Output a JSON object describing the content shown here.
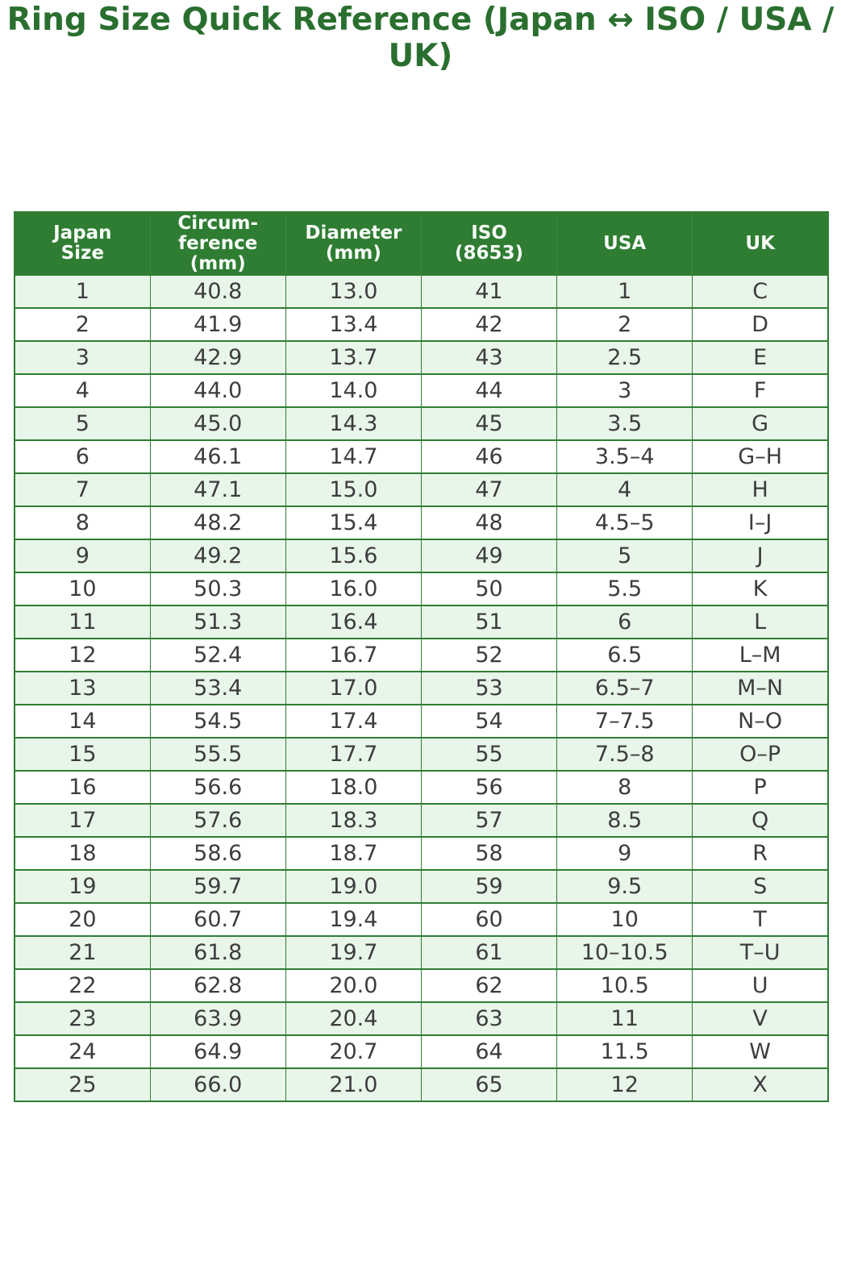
{
  "title": "Ring Size Quick Reference (Japan ↔ ISO / USA / UK)",
  "colors": {
    "title_green": "#2a6f2f",
    "header_background": "#2e7d32",
    "header_text": "#f7faf7",
    "border_green": "#2f7d33",
    "row_shaded": "#e8f5e9",
    "row_plain": "#ffffff",
    "cell_text": "#3d3d3d"
  },
  "chart_data": {
    "type": "table",
    "title": "Ring Size Quick Reference (Japan ↔ ISO / USA / UK)",
    "columns": [
      {
        "id": "japan-size",
        "label": "Japan\nSize"
      },
      {
        "id": "circumference-mm",
        "label": "Circum-\nference\n(mm)"
      },
      {
        "id": "diameter-mm",
        "label": "Diameter\n(mm)"
      },
      {
        "id": "iso-8653",
        "label": "ISO\n(8653)"
      },
      {
        "id": "usa",
        "label": "USA"
      },
      {
        "id": "uk",
        "label": "UK"
      }
    ],
    "rows": [
      [
        "1",
        "40.8",
        "13.0",
        "41",
        "1",
        "C"
      ],
      [
        "2",
        "41.9",
        "13.4",
        "42",
        "2",
        "D"
      ],
      [
        "3",
        "42.9",
        "13.7",
        "43",
        "2.5",
        "E"
      ],
      [
        "4",
        "44.0",
        "14.0",
        "44",
        "3",
        "F"
      ],
      [
        "5",
        "45.0",
        "14.3",
        "45",
        "3.5",
        "G"
      ],
      [
        "6",
        "46.1",
        "14.7",
        "46",
        "3.5–4",
        "G–H"
      ],
      [
        "7",
        "47.1",
        "15.0",
        "47",
        "4",
        "H"
      ],
      [
        "8",
        "48.2",
        "15.4",
        "48",
        "4.5–5",
        "I–J"
      ],
      [
        "9",
        "49.2",
        "15.6",
        "49",
        "5",
        "J"
      ],
      [
        "10",
        "50.3",
        "16.0",
        "50",
        "5.5",
        "K"
      ],
      [
        "11",
        "51.3",
        "16.4",
        "51",
        "6",
        "L"
      ],
      [
        "12",
        "52.4",
        "16.7",
        "52",
        "6.5",
        "L–M"
      ],
      [
        "13",
        "53.4",
        "17.0",
        "53",
        "6.5–7",
        "M–N"
      ],
      [
        "14",
        "54.5",
        "17.4",
        "54",
        "7–7.5",
        "N–O"
      ],
      [
        "15",
        "55.5",
        "17.7",
        "55",
        "7.5–8",
        "O–P"
      ],
      [
        "16",
        "56.6",
        "18.0",
        "56",
        "8",
        "P"
      ],
      [
        "17",
        "57.6",
        "18.3",
        "57",
        "8.5",
        "Q"
      ],
      [
        "18",
        "58.6",
        "18.7",
        "58",
        "9",
        "R"
      ],
      [
        "19",
        "59.7",
        "19.0",
        "59",
        "9.5",
        "S"
      ],
      [
        "20",
        "60.7",
        "19.4",
        "60",
        "10",
        "T"
      ],
      [
        "21",
        "61.8",
        "19.7",
        "61",
        "10–10.5",
        "T–U"
      ],
      [
        "22",
        "62.8",
        "20.0",
        "62",
        "10.5",
        "U"
      ],
      [
        "23",
        "63.9",
        "20.4",
        "63",
        "11",
        "V"
      ],
      [
        "24",
        "64.9",
        "20.7",
        "64",
        "11.5",
        "W"
      ],
      [
        "25",
        "66.0",
        "21.0",
        "65",
        "12",
        "X"
      ]
    ]
  }
}
